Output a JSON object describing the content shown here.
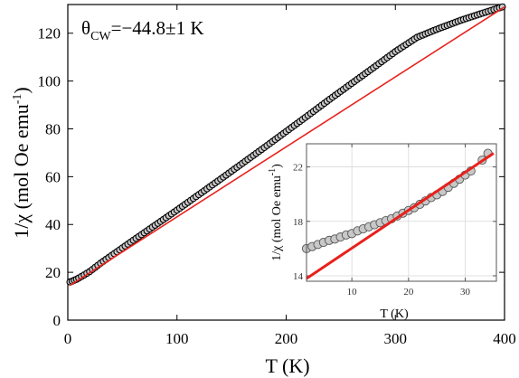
{
  "annotation": {
    "theta_symbol": "θ",
    "theta_subscript": "CW",
    "theta_value": "=−44.8±1 K"
  },
  "chart_data": [
    {
      "type": "scatter",
      "title": "",
      "xlabel": "T (K)",
      "ylabel": "1/χ (mol Oe emu",
      "ylabel_superscript": "-1",
      "ylabel_suffix": ")",
      "xlim": [
        0,
        400
      ],
      "ylim": [
        0,
        132
      ],
      "x_ticks": [
        0,
        100,
        200,
        300,
        400
      ],
      "y_ticks": [
        0,
        20,
        40,
        60,
        80,
        100,
        120
      ],
      "grid": false,
      "legend": "none",
      "marker_color": "#000000",
      "marker_fill": "#c8c8c8",
      "fit_color": "#e8211b",
      "series": [
        {
          "kind": "points",
          "x": [
            2,
            4,
            6,
            8,
            10,
            15,
            20,
            30,
            40,
            50,
            60,
            80,
            100,
            120,
            140,
            160,
            180,
            200,
            220,
            240,
            260,
            280,
            300,
            320,
            340,
            360,
            380,
            398
          ],
          "y": [
            16.0,
            16.3,
            16.7,
            17.1,
            17.6,
            18.9,
            20.3,
            23.8,
            27.0,
            30.2,
            33.4,
            39.7,
            46.0,
            52.5,
            59.0,
            65.6,
            72.2,
            78.9,
            85.6,
            92.4,
            99.0,
            105.6,
            112.3,
            118.3,
            122.0,
            125.4,
            128.4,
            131.0
          ]
        },
        {
          "kind": "fit",
          "x": [
            2,
            400
          ],
          "y": [
            14.5,
            131.0
          ]
        }
      ]
    },
    {
      "type": "scatter",
      "title": "",
      "xlabel": "T (K)",
      "ylabel": "1/χ (mol Oe emu",
      "ylabel_superscript": "-1",
      "ylabel_suffix": ")",
      "xlim": [
        2,
        35.5
      ],
      "ylim": [
        13.6,
        23.7
      ],
      "x_ticks": [
        10,
        20,
        30
      ],
      "y_ticks": [
        14,
        18,
        22
      ],
      "grid": true,
      "legend": "none",
      "marker_color": "#555555",
      "marker_fill": "#c8c8c8",
      "fit_color": "#e8211b",
      "series": [
        {
          "kind": "points",
          "x": [
            2,
            3,
            4,
            5,
            6,
            7,
            8,
            9,
            10,
            11,
            12,
            13,
            14,
            15,
            16,
            17,
            18,
            19,
            20,
            21,
            22,
            23,
            24,
            25,
            26,
            27,
            28,
            29,
            30,
            31,
            33,
            34
          ],
          "y": [
            16.0,
            16.15,
            16.3,
            16.45,
            16.6,
            16.7,
            16.85,
            17.0,
            17.1,
            17.3,
            17.45,
            17.6,
            17.75,
            17.9,
            18.05,
            18.2,
            18.4,
            18.6,
            18.8,
            19.0,
            19.25,
            19.5,
            19.75,
            19.95,
            20.2,
            20.5,
            20.8,
            21.1,
            21.4,
            21.7,
            22.5,
            23.0
          ]
        },
        {
          "kind": "fit",
          "x": [
            2,
            35
          ],
          "y": [
            13.8,
            23.0
          ]
        }
      ]
    }
  ]
}
